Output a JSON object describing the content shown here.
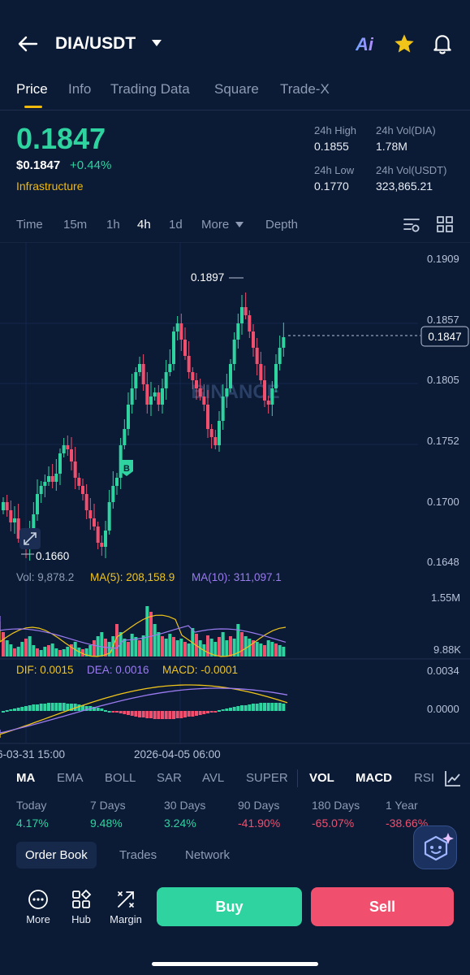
{
  "header": {
    "pair": "DIA/USDT",
    "ai_label": "Ai"
  },
  "tabs": [
    "Price",
    "Info",
    "Trading Data",
    "Square",
    "Trade-X"
  ],
  "price": {
    "last": "0.1847",
    "usd": "$0.1847",
    "change": "+0.44%",
    "category": "Infrastructure"
  },
  "stats": {
    "high_label": "24h High",
    "high_value": "0.1855",
    "low_label": "24h Low",
    "low_value": "0.1770",
    "vol_base_label": "24h Vol(DIA)",
    "vol_base_value": "1.78M",
    "vol_quote_label": "24h Vol(USDT)",
    "vol_quote_value": "323,865.21"
  },
  "intervals": [
    "Time",
    "15m",
    "1h",
    "4h",
    "1d",
    "More",
    "Depth"
  ],
  "chart": {
    "price_axis": [
      "0.1909",
      "0.1857",
      "0.1805",
      "0.1752",
      "0.1700",
      "0.1648"
    ],
    "high_marker": "0.1897",
    "low_marker": "0.1660",
    "current_price": "0.1847",
    "buy_marker": "B",
    "watermark": "BINANCE",
    "volume_line": {
      "vol": "Vol: 9,878.2",
      "ma5": "MA(5): 208,158.9",
      "ma10": "MA(10): 311,097.1"
    },
    "volume_axis": [
      "1.55M",
      "9.88K"
    ],
    "macd_line": {
      "dif": "DIF: 0.0015",
      "dea": "DEA: 0.0016",
      "macd": "MACD: -0.0001"
    },
    "macd_axis": [
      "0.0034",
      "0.0000"
    ],
    "time_axis": [
      "6-03-31 15:00",
      "2026-04-05 06:00"
    ],
    "colors": {
      "up": "#2ed3a0",
      "down": "#f0506e",
      "ma5": "#f0c419",
      "ma10": "#9b7bf0"
    }
  },
  "indicators": [
    "MA",
    "EMA",
    "BOLL",
    "SAR",
    "AVL",
    "SUPER",
    "VOL",
    "MACD",
    "RSI"
  ],
  "performance": [
    {
      "label": "Today",
      "value": "4.17%",
      "dir": "up"
    },
    {
      "label": "7 Days",
      "value": "9.48%",
      "dir": "up"
    },
    {
      "label": "30 Days",
      "value": "3.24%",
      "dir": "up"
    },
    {
      "label": "90 Days",
      "value": "-41.90%",
      "dir": "down"
    },
    {
      "label": "180 Days",
      "value": "-65.07%",
      "dir": "down"
    },
    {
      "label": "1 Year",
      "value": "-38.66%",
      "dir": "down"
    }
  ],
  "bottom_tabs": [
    "Order Book",
    "Trades",
    "Network"
  ],
  "nav": [
    "More",
    "Hub",
    "Margin"
  ],
  "actions": {
    "buy": "Buy",
    "sell": "Sell"
  }
}
